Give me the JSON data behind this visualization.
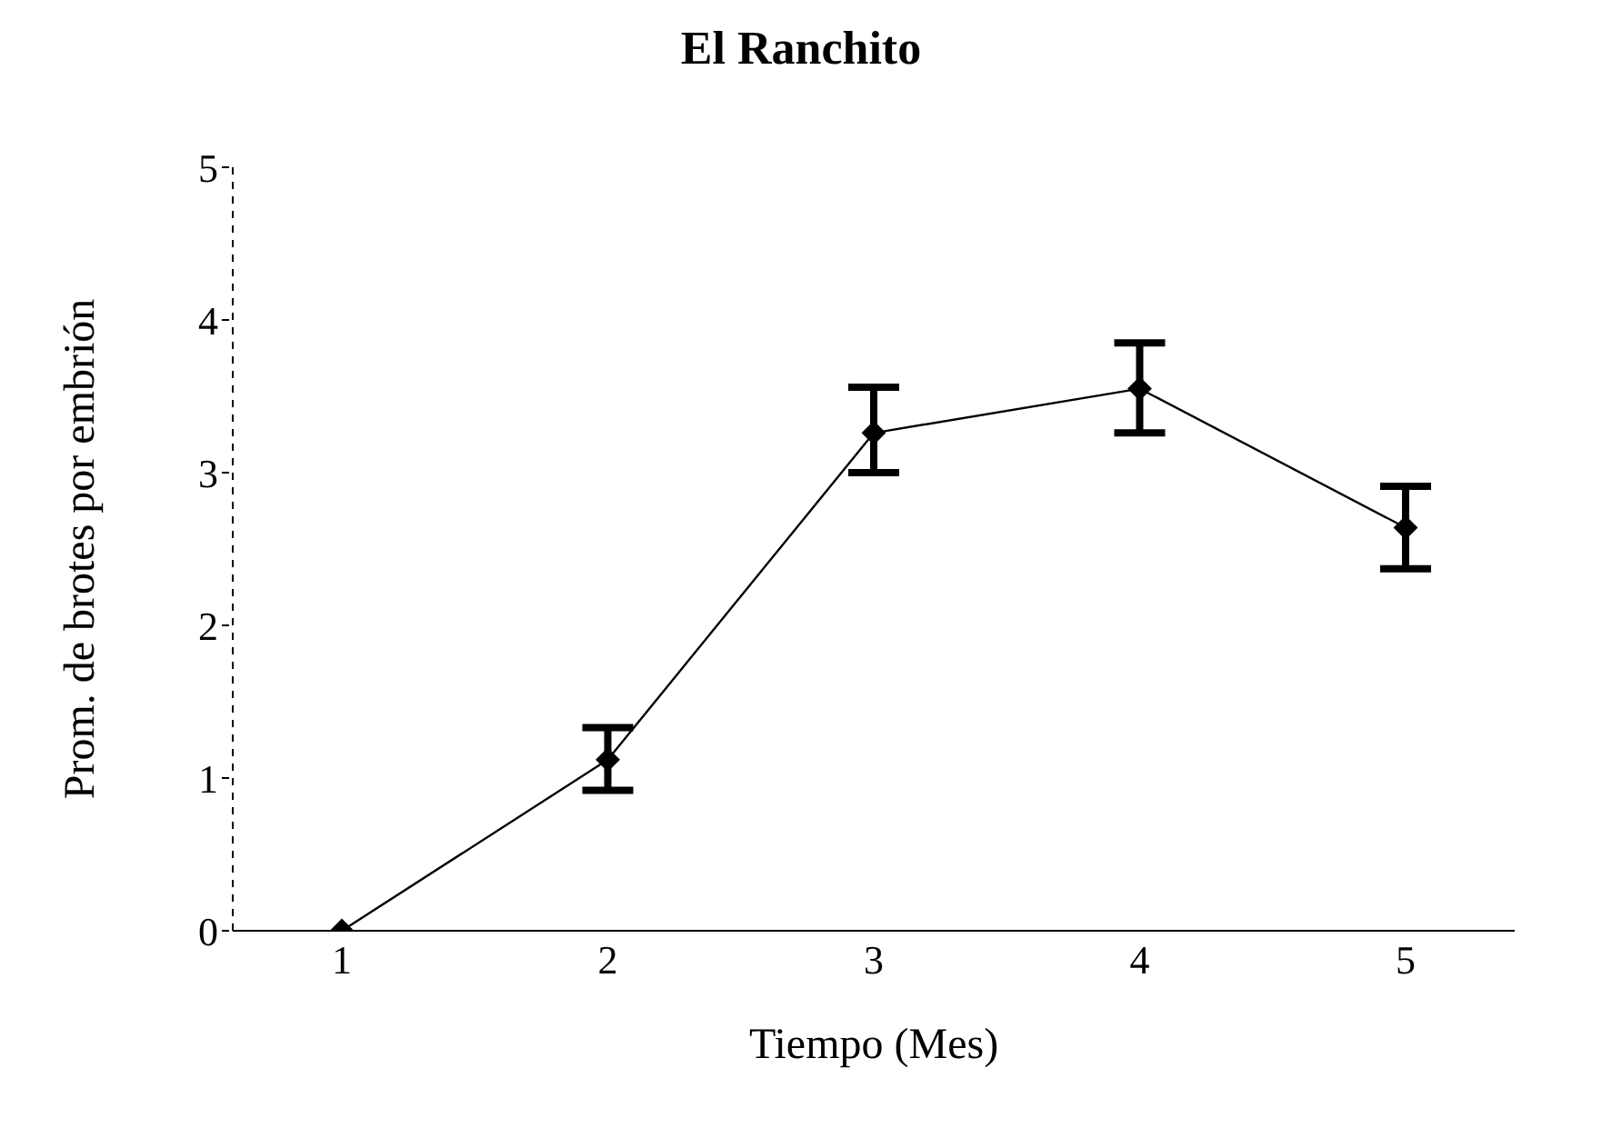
{
  "chart_data": {
    "type": "line",
    "title": "El Ranchito",
    "xlabel": "Tiempo (Mes)",
    "ylabel": "Prom. de brotes por embrión",
    "categories": [
      "1",
      "2",
      "3",
      "4",
      "5"
    ],
    "series": [
      {
        "color": "#000000",
        "values": [
          0,
          1.12,
          3.26,
          3.55,
          2.64
        ],
        "errors": [
          null,
          [
            0.92,
            1.33
          ],
          [
            3.0,
            3.56
          ],
          [
            3.26,
            3.85
          ],
          [
            2.37,
            2.91
          ]
        ]
      }
    ],
    "ylim": [
      0,
      5
    ],
    "yticks": [
      0,
      1,
      2,
      3,
      4,
      5
    ],
    "grid": false,
    "marker": "diamond",
    "line_style": "solid"
  }
}
